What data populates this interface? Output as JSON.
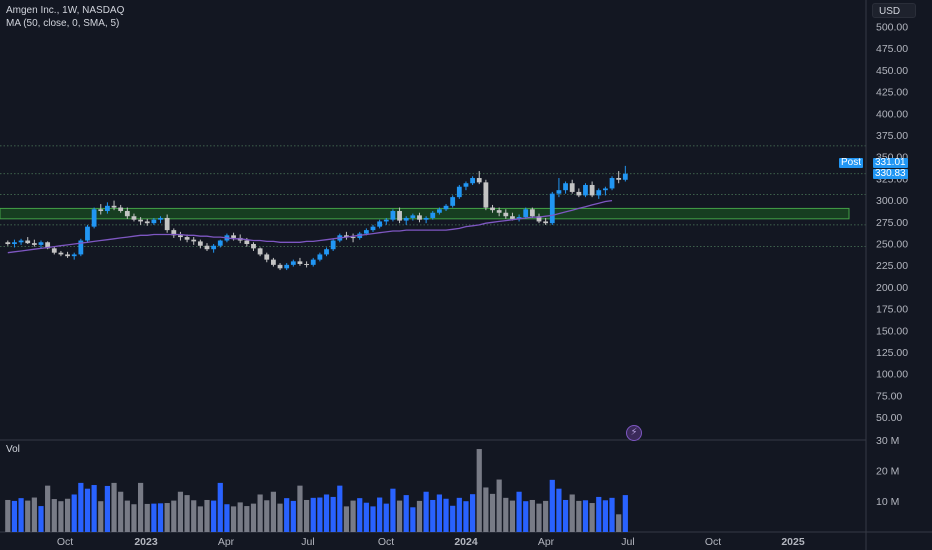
{
  "legend": {
    "symbol": "Amgen Inc., 1W, NASDAQ",
    "indicator": "MA (50, close, 0, SMA, 5)"
  },
  "currency_button": "USD",
  "volume_label": "Vol",
  "event_icon": "lightning-icon",
  "price_badges": {
    "post_label": "Post",
    "post_value": "331.01",
    "last_value": "330.83"
  },
  "colors": {
    "background": "#131722",
    "up_candle": "#2196f3",
    "down_candle": "#c4c4c4",
    "ma_line": "#7e57c2",
    "zone_fill": "#1b5e20",
    "zone_border": "#43a047",
    "vol_up": "#2962ff",
    "vol_down": "#787b86"
  },
  "chart_data": {
    "type": "candlestick",
    "title": "Amgen Inc., 1W, NASDAQ",
    "y_axis": {
      "ticks": [
        "500.00",
        "475.00",
        "450.00",
        "425.00",
        "400.00",
        "375.00",
        "350.00",
        "325.00",
        "300.00",
        "275.00",
        "250.00",
        "225.00",
        "200.00",
        "175.00",
        "150.00",
        "125.00",
        "100.00",
        "75.00",
        "50.00"
      ],
      "ylim": [
        31,
        511
      ],
      "scale": "linear"
    },
    "x_axis": {
      "ticks": [
        "Oct",
        "2023",
        "Apr",
        "Jul",
        "Oct",
        "2024",
        "Apr",
        "Jul",
        "Oct",
        "2025"
      ]
    },
    "horizontal_levels": [
      363,
      330.9,
      307,
      272,
      247
    ],
    "zone": {
      "low": 279,
      "high": 291
    },
    "series": [
      {
        "name": "price",
        "values": [
          [
            252,
            254,
            248,
            250
          ],
          [
            250,
            255,
            246,
            252
          ],
          [
            252,
            256,
            249,
            254
          ],
          [
            254,
            258,
            250,
            251
          ],
          [
            251,
            255,
            247,
            249
          ],
          [
            249,
            254,
            245,
            252
          ],
          [
            252,
            253,
            244,
            245
          ],
          [
            245,
            247,
            238,
            240
          ],
          [
            240,
            242,
            236,
            238
          ],
          [
            238,
            241,
            234,
            236
          ],
          [
            236,
            240,
            232,
            238
          ],
          [
            238,
            256,
            236,
            254
          ],
          [
            254,
            272,
            252,
            270
          ],
          [
            270,
            292,
            268,
            290
          ],
          [
            290,
            296,
            284,
            288
          ],
          [
            288,
            298,
            285,
            294
          ],
          [
            294,
            300,
            289,
            292
          ],
          [
            292,
            295,
            286,
            288
          ],
          [
            288,
            292,
            279,
            282
          ],
          [
            282,
            285,
            276,
            278
          ],
          [
            278,
            281,
            272,
            276
          ],
          [
            276,
            279,
            271,
            274
          ],
          [
            274,
            280,
            272,
            278
          ],
          [
            278,
            282,
            274,
            280
          ],
          [
            280,
            284,
            263,
            266
          ],
          [
            266,
            268,
            257,
            260
          ],
          [
            260,
            264,
            254,
            258
          ],
          [
            258,
            261,
            252,
            255
          ],
          [
            255,
            258,
            249,
            253
          ],
          [
            253,
            255,
            245,
            248
          ],
          [
            248,
            251,
            242,
            244
          ],
          [
            244,
            250,
            240,
            248
          ],
          [
            248,
            255,
            246,
            254
          ],
          [
            254,
            262,
            252,
            260
          ],
          [
            260,
            263,
            254,
            257
          ],
          [
            257,
            261,
            251,
            254
          ],
          [
            254,
            257,
            247,
            250
          ],
          [
            250,
            252,
            242,
            245
          ],
          [
            245,
            246,
            236,
            238
          ],
          [
            238,
            240,
            229,
            232
          ],
          [
            232,
            234,
            224,
            226
          ],
          [
            226,
            228,
            220,
            222
          ],
          [
            222,
            228,
            220,
            226
          ],
          [
            226,
            232,
            224,
            230
          ],
          [
            230,
            234,
            225,
            227
          ],
          [
            227,
            230,
            223,
            226
          ],
          [
            226,
            234,
            224,
            232
          ],
          [
            232,
            240,
            230,
            238
          ],
          [
            238,
            246,
            236,
            244
          ],
          [
            244,
            256,
            242,
            254
          ],
          [
            254,
            262,
            252,
            260
          ],
          [
            260,
            264,
            255,
            258
          ],
          [
            258,
            262,
            252,
            257
          ],
          [
            257,
            264,
            255,
            262
          ],
          [
            262,
            268,
            260,
            266
          ],
          [
            266,
            272,
            264,
            270
          ],
          [
            270,
            278,
            268,
            276
          ],
          [
            276,
            280,
            272,
            278
          ],
          [
            278,
            290,
            276,
            288
          ],
          [
            288,
            292,
            274,
            277
          ],
          [
            277,
            282,
            272,
            280
          ],
          [
            280,
            285,
            277,
            283
          ],
          [
            283,
            286,
            275,
            278
          ],
          [
            278,
            282,
            274,
            280
          ],
          [
            280,
            288,
            278,
            286
          ],
          [
            286,
            292,
            284,
            290
          ],
          [
            290,
            296,
            288,
            294
          ],
          [
            294,
            306,
            292,
            304
          ],
          [
            304,
            318,
            302,
            316
          ],
          [
            316,
            322,
            312,
            320
          ],
          [
            320,
            328,
            318,
            326
          ],
          [
            326,
            334,
            319,
            321
          ],
          [
            321,
            324,
            289,
            292
          ],
          [
            292,
            295,
            286,
            289
          ],
          [
            289,
            292,
            282,
            286
          ],
          [
            286,
            290,
            279,
            282
          ],
          [
            282,
            286,
            277,
            279
          ],
          [
            279,
            284,
            276,
            281
          ],
          [
            281,
            292,
            279,
            290
          ],
          [
            290,
            292,
            280,
            282
          ],
          [
            282,
            285,
            274,
            276
          ],
          [
            276,
            280,
            272,
            274
          ],
          [
            274,
            310,
            272,
            308
          ],
          [
            308,
            326,
            304,
            312
          ],
          [
            312,
            322,
            308,
            320
          ],
          [
            320,
            324,
            308,
            310
          ],
          [
            310,
            314,
            304,
            306
          ],
          [
            306,
            320,
            304,
            318
          ],
          [
            318,
            322,
            304,
            306
          ],
          [
            306,
            314,
            302,
            312
          ],
          [
            312,
            316,
            306,
            314
          ],
          [
            314,
            328,
            312,
            326
          ],
          [
            326,
            334,
            320,
            324
          ],
          [
            324,
            340,
            322,
            331
          ]
        ]
      },
      {
        "name": "MA (50, close, 0, SMA, 5)",
        "values": [
          240,
          241,
          242,
          243,
          244,
          245,
          246,
          247,
          248,
          249,
          250,
          251,
          252,
          253,
          254,
          255,
          256,
          257,
          258,
          259,
          260,
          260,
          261,
          261,
          261,
          261,
          261,
          260,
          260,
          259,
          259,
          258,
          258,
          257,
          256,
          256,
          255,
          254,
          254,
          253,
          253,
          252,
          252,
          252,
          252,
          253,
          253,
          254,
          255,
          256,
          257,
          258,
          259,
          260,
          261,
          262,
          263,
          264,
          265,
          265,
          266,
          266,
          266,
          266,
          266,
          266,
          266,
          267,
          268,
          270,
          271,
          272,
          274,
          275,
          276,
          277,
          278,
          279,
          280,
          281,
          281,
          282,
          283,
          285,
          287,
          289,
          291,
          293,
          295,
          297,
          299,
          300
        ]
      },
      {
        "name": "Vol",
        "values": [
          10.5,
          10.2,
          11.1,
          10.3,
          11.3,
          8.5,
          15.2,
          10.8,
          10.1,
          10.9,
          12.3,
          16.1,
          14.2,
          15.4,
          10.1,
          15.1,
          16.1,
          13.2,
          10.3,
          9.1,
          16.1,
          9.2,
          9.3,
          9.4,
          9.5,
          10.3,
          13.2,
          12.1,
          10.4,
          8.4,
          10.5,
          10.3,
          16.1,
          9.1,
          8.4,
          9.7,
          8.5,
          9.3,
          12.3,
          10.4,
          13.2,
          9.3,
          11.1,
          10.2,
          15.2,
          10.5,
          11.2,
          11.3,
          12.3,
          11.5,
          15.2,
          8.4,
          10.3,
          11.1,
          9.6,
          8.4,
          11.3,
          9.3,
          14.2,
          10.3,
          12.1,
          8.1,
          10.2,
          13.2,
          10.5,
          12.3,
          10.9,
          8.6,
          11.2,
          10.1,
          12.4,
          27.2,
          14.6,
          12.5,
          17.2,
          11.2,
          10.3,
          13.2,
          10.1,
          10.5,
          9.3,
          10.2,
          17.1,
          14.2,
          10.5,
          12.3,
          10.2,
          10.4,
          9.5,
          11.5,
          10.4,
          11.2,
          5.8,
          12.1
        ]
      }
    ],
    "volume_axis_ticks": [
      "30 M",
      "20 M",
      "10 M"
    ]
  }
}
